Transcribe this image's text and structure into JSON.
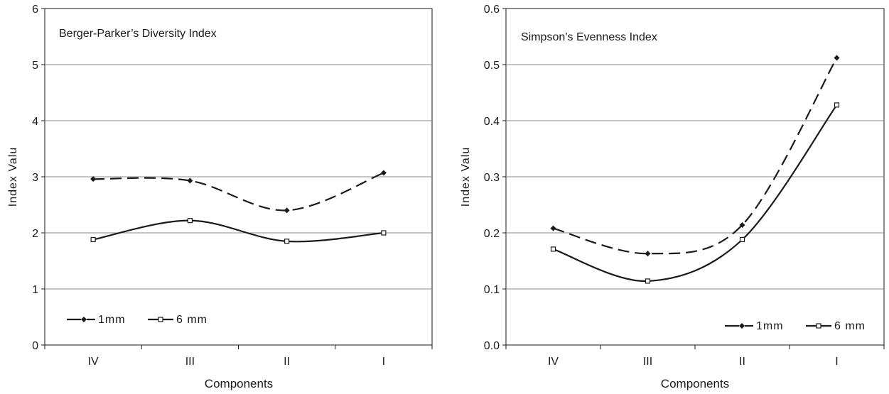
{
  "chart_data": [
    {
      "type": "line",
      "title": "Berger-Parker’s Diversity Index",
      "xlabel": "Components",
      "ylabel": "Index Valu",
      "categories": [
        "IV",
        "III",
        "II",
        "I"
      ],
      "ylim": [
        0,
        6
      ],
      "yticks": [
        "0",
        "1",
        "2",
        "3",
        "4",
        "5",
        "6"
      ],
      "grid": true,
      "legend_position": "bottom-left",
      "series": [
        {
          "name": "1mm",
          "values": [
            2.96,
            2.93,
            2.4,
            3.07
          ],
          "line": "dashed",
          "marker": "diamond",
          "color": "#1a1a1a"
        },
        {
          "name": "6 mm",
          "values": [
            1.88,
            2.22,
            1.85,
            2.0
          ],
          "line": "solid",
          "marker": "open-square",
          "color": "#1a1a1a"
        }
      ]
    },
    {
      "type": "line",
      "title": "Simpson’s Evenness Index",
      "xlabel": "Components",
      "ylabel": "Index Valu",
      "categories": [
        "IV",
        "III",
        "II",
        "I"
      ],
      "ylim": [
        0,
        0.6
      ],
      "yticks": [
        "0.0",
        "0.1",
        "0.2",
        "0.3",
        "0.4",
        "0.5",
        "0.6"
      ],
      "grid": true,
      "legend_position": "bottom-right",
      "series": [
        {
          "name": "1mm",
          "values": [
            0.208,
            0.163,
            0.214,
            0.512
          ],
          "line": "dashed",
          "marker": "diamond",
          "color": "#1a1a1a"
        },
        {
          "name": "6 mm",
          "values": [
            0.171,
            0.114,
            0.188,
            0.428
          ],
          "line": "solid",
          "marker": "open-square",
          "color": "#1a1a1a"
        }
      ]
    }
  ]
}
